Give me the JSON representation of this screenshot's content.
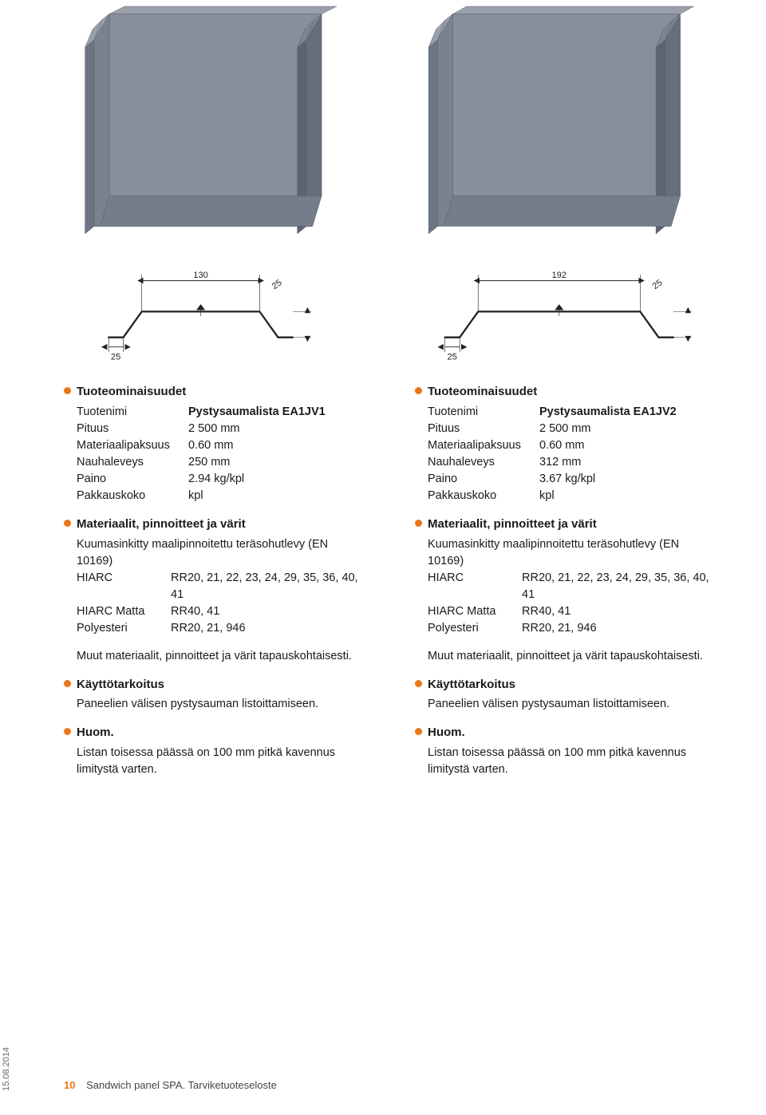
{
  "render": {
    "panel_fill": "#888f9c",
    "panel_edge": "#5a606b",
    "line_color": "#222222",
    "bullet_color": "#e87817"
  },
  "left": {
    "profile": {
      "width_dim": "130",
      "flange_dim": "25",
      "flange_dim_l": "25",
      "height_dim": "25"
    },
    "specs_title": "Tuoteominaisuudet",
    "specs": [
      {
        "k": "Tuotenimi",
        "v": "Pystysaumalista EA1JV1"
      },
      {
        "k": "Pituus",
        "v": "2 500 mm"
      },
      {
        "k": "Materiaalipaksuus",
        "v": "0.60 mm"
      },
      {
        "k": "Nauhaleveys",
        "v": "250 mm"
      },
      {
        "k": "Paino",
        "v": "2.94 kg/kpl"
      },
      {
        "k": "Pakkauskoko",
        "v": "kpl"
      }
    ],
    "mats_title": "Materiaalit, pinnoitteet ja värit",
    "mats_intro": "Kuumasinkitty maalipinnoitettu teräsohutlevy (EN 10169)",
    "mats": [
      {
        "k": "HIARC",
        "v": "RR20, 21, 22, 23, 24, 29, 35, 36, 40, 41"
      },
      {
        "k": "HIARC Matta",
        "v": "RR40, 41"
      },
      {
        "k": "Polyesteri",
        "v": "RR20, 21, 946"
      }
    ],
    "mats_note": "Muut materiaalit, pinnoitteet ja värit tapauskohtaisesti.",
    "use_title": "Käyttötarkoitus",
    "use_text": "Paneelien välisen pystysauman listoittamiseen.",
    "huom_title": "Huom.",
    "huom_text": "Listan toisessa päässä on 100 mm pitkä kavennus limitystä varten."
  },
  "right": {
    "profile": {
      "width_dim": "192",
      "flange_dim": "25",
      "flange_dim_l": "25",
      "height_dim": "25"
    },
    "specs_title": "Tuoteominaisuudet",
    "specs": [
      {
        "k": "Tuotenimi",
        "v": "Pystysaumalista EA1JV2"
      },
      {
        "k": "Pituus",
        "v": "2 500 mm"
      },
      {
        "k": "Materiaalipaksuus",
        "v": "0.60 mm"
      },
      {
        "k": "Nauhaleveys",
        "v": "312 mm"
      },
      {
        "k": "Paino",
        "v": "3.67 kg/kpl"
      },
      {
        "k": "Pakkauskoko",
        "v": "kpl"
      }
    ],
    "mats_title": "Materiaalit, pinnoitteet ja värit",
    "mats_intro": "Kuumasinkitty maalipinnoitettu teräsohutlevy (EN 10169)",
    "mats": [
      {
        "k": "HIARC",
        "v": "RR20, 21, 22, 23, 24, 29, 35, 36, 40, 41"
      },
      {
        "k": "HIARC Matta",
        "v": "RR40, 41"
      },
      {
        "k": "Polyesteri",
        "v": "RR20, 21, 946"
      }
    ],
    "mats_note": "Muut materiaalit, pinnoitteet ja värit tapauskohtaisesti.",
    "use_title": "Käyttötarkoitus",
    "use_text": "Paneelien välisen pystysauman listoittamiseen.",
    "huom_title": "Huom.",
    "huom_text": "Listan toisessa päässä on 100 mm pitkä kavennus limitystä varten."
  },
  "footer": {
    "page": "10",
    "title": "Sandwich panel SPA. Tarviketuoteseloste"
  },
  "side_date": "15.08.2014"
}
